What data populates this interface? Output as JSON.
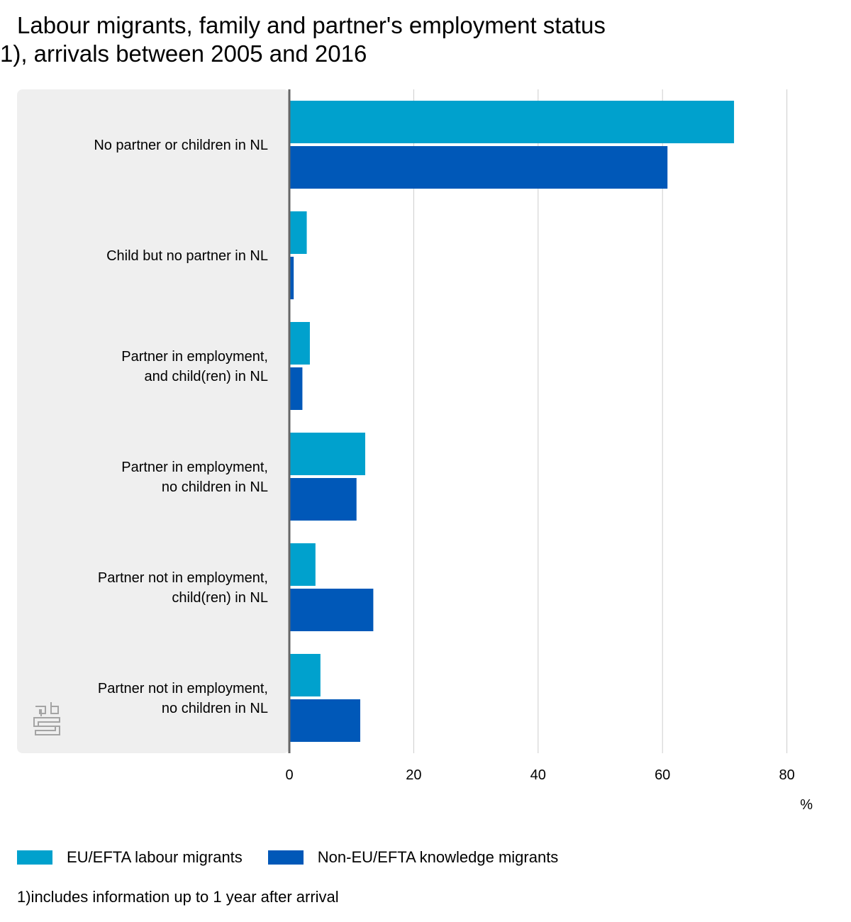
{
  "title_line1": "Labour migrants, family and partner's employment status",
  "title_line2": "1), arrivals between 2005 and 2016",
  "footnote": "1)includes information up to 1 year after arrival",
  "logo_text": "cbs",
  "chart_data": {
    "type": "bar",
    "orientation": "horizontal",
    "title": "Labour migrants, family and partner's employment status 1), arrivals between 2005 and 2016",
    "categories": [
      "No partner or children in NL",
      "Child but no partner in NL",
      "Partner in employment,\nand child(ren) in NL",
      "Partner in employment,\nno children in NL",
      "Partner not in employment,\nchild(ren) in NL",
      "Partner not in employment,\nno children in NL"
    ],
    "series": [
      {
        "name": "EU/EFTA labour migrants",
        "color": "#00a1cd",
        "values": [
          71.5,
          2.8,
          3.3,
          12.2,
          4.2,
          5.0
        ]
      },
      {
        "name": "Non-EU/EFTA knowledge migrants",
        "color": "#0058b8",
        "values": [
          60.8,
          0.7,
          2.1,
          10.8,
          13.5,
          11.4
        ]
      }
    ],
    "xlabel": "%",
    "xlim": [
      0,
      80
    ],
    "xticks": [
      0,
      20,
      40,
      60,
      80
    ],
    "grid": true,
    "legend_position": "bottom-left"
  }
}
